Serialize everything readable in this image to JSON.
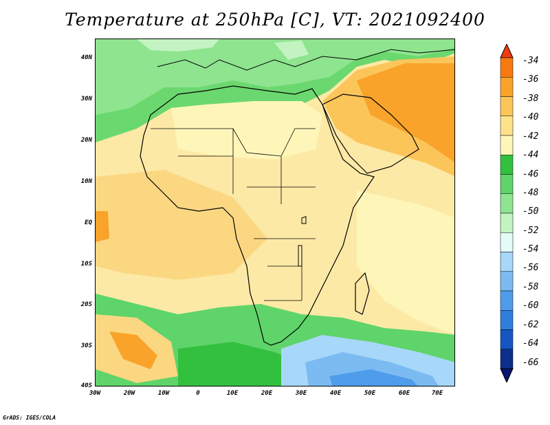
{
  "title": "Temperature at 250hPa [C], VT: 2021092400",
  "footer": "GrADS: IGES/COLA",
  "axes": {
    "lat_labels": [
      "40N",
      "30N",
      "20N",
      "10N",
      "EQ",
      "10S",
      "20S",
      "30S",
      "40S"
    ],
    "lon_labels": [
      "30W",
      "20W",
      "10W",
      "0",
      "10E",
      "20E",
      "30E",
      "40E",
      "50E",
      "60E",
      "70E"
    ]
  },
  "legend": {
    "labels": [
      "-34",
      "-36",
      "-38",
      "-40",
      "-42",
      "-44",
      "-46",
      "-48",
      "-50",
      "-52",
      "-54",
      "-56",
      "-58",
      "-60",
      "-62",
      "-64",
      "-66"
    ],
    "colors": [
      "#f03c10",
      "#f77a10",
      "#f9a32b",
      "#fbc55a",
      "#fde28a",
      "#fef6b8",
      "#34c03f",
      "#5fd46a",
      "#8fe48f",
      "#c2f3c0",
      "#e4fbf6",
      "#a7d7f9",
      "#7bbbf2",
      "#4f9ceb",
      "#2f7ede",
      "#1655c2",
      "#0e2e8c",
      "#0a166e"
    ]
  }
}
